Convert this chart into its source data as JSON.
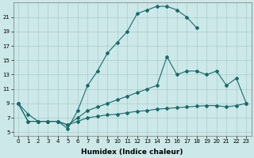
{
  "xlabel": "Humidex (Indice chaleur)",
  "bg_color": "#cce8e8",
  "grid_color": "#aacccc",
  "line_color": "#1a6b6b",
  "line1_x": [
    0,
    1,
    2,
    3,
    4,
    5,
    6,
    7,
    8,
    9,
    10,
    11,
    12,
    13,
    14,
    15,
    16,
    17,
    18
  ],
  "line1_y": [
    9.0,
    7.5,
    6.5,
    6.5,
    6.5,
    5.5,
    8.0,
    11.5,
    13.5,
    16.0,
    17.5,
    19.0,
    21.5,
    22.0,
    22.5,
    22.5,
    22.0,
    21.0,
    19.5
  ],
  "line2_x": [
    0,
    1,
    2,
    3,
    4,
    5,
    6,
    7,
    8,
    9,
    10,
    11,
    12,
    13,
    14,
    15,
    16,
    17,
    18,
    19,
    20,
    21,
    22,
    23
  ],
  "line2_y": [
    9.0,
    6.5,
    6.5,
    6.5,
    6.5,
    6.0,
    7.0,
    8.0,
    8.5,
    9.0,
    9.5,
    10.0,
    10.5,
    11.0,
    11.5,
    15.5,
    13.0,
    13.5,
    13.5,
    13.0,
    13.5,
    11.5,
    12.5,
    9.0
  ],
  "line3_x": [
    0,
    1,
    2,
    3,
    4,
    5,
    6,
    7,
    8,
    9,
    10,
    11,
    12,
    13,
    14,
    15,
    16,
    17,
    18,
    19,
    20,
    21,
    22,
    23
  ],
  "line3_y": [
    9.0,
    6.5,
    6.5,
    6.5,
    6.5,
    6.0,
    6.5,
    7.0,
    7.2,
    7.4,
    7.5,
    7.7,
    7.9,
    8.0,
    8.2,
    8.3,
    8.4,
    8.5,
    8.6,
    8.7,
    8.7,
    8.5,
    8.7,
    9.0
  ],
  "xlim": [
    -0.5,
    23.5
  ],
  "ylim": [
    4.5,
    23.0
  ],
  "yticks": [
    5,
    7,
    9,
    11,
    13,
    15,
    17,
    19,
    21
  ],
  "xticks": [
    0,
    1,
    2,
    3,
    4,
    5,
    6,
    7,
    8,
    9,
    10,
    11,
    12,
    13,
    14,
    15,
    16,
    17,
    18,
    19,
    20,
    21,
    22,
    23
  ],
  "xtick_labels": [
    "0",
    "1",
    "2",
    "3",
    "4",
    "5",
    "6",
    "7",
    "8",
    "9",
    "10",
    "11",
    "12",
    "13",
    "14",
    "15",
    "16",
    "17",
    "18",
    "19",
    "20",
    "21",
    "22",
    "23"
  ],
  "ytick_labels": [
    "5",
    "7",
    "9",
    "11",
    "13",
    "15",
    "17",
    "19",
    "21"
  ],
  "marker": "D",
  "markersize": 2.0,
  "linewidth": 0.8,
  "tick_fontsize": 5.0,
  "xlabel_fontsize": 6.5
}
